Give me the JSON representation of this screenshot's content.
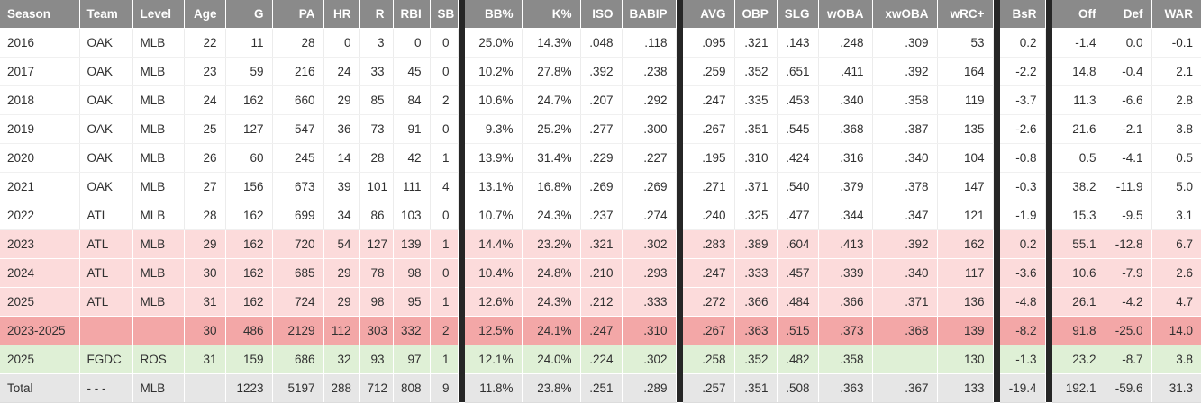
{
  "colors": {
    "header_bg": "#8a8a8a",
    "header_text": "#ffffff",
    "divider": "#262626",
    "row_pink": "#fcdbdb",
    "row_salmon": "#f3a7a7",
    "row_green": "#dff0d6",
    "row_gray": "#e6e6e6",
    "text": "#303030"
  },
  "table": {
    "columns": [
      {
        "label": "Season",
        "align": "left"
      },
      {
        "label": "Team",
        "align": "left"
      },
      {
        "label": "Level",
        "align": "left"
      },
      {
        "label": "Age",
        "align": "right"
      },
      {
        "label": "G",
        "align": "right"
      },
      {
        "label": "PA",
        "align": "right"
      },
      {
        "label": "HR",
        "align": "right"
      },
      {
        "label": "R",
        "align": "right"
      },
      {
        "label": "RBI",
        "align": "right"
      },
      {
        "label": "SB",
        "align": "right"
      },
      {
        "divider": true
      },
      {
        "label": "BB%",
        "align": "right"
      },
      {
        "label": "K%",
        "align": "right"
      },
      {
        "label": "ISO",
        "align": "right"
      },
      {
        "label": "BABIP",
        "align": "right"
      },
      {
        "divider": true
      },
      {
        "label": "AVG",
        "align": "right"
      },
      {
        "label": "OBP",
        "align": "right"
      },
      {
        "label": "SLG",
        "align": "right"
      },
      {
        "label": "wOBA",
        "align": "right"
      },
      {
        "label": "xwOBA",
        "align": "right"
      },
      {
        "label": "wRC+",
        "align": "right"
      },
      {
        "divider": true
      },
      {
        "label": "BsR",
        "align": "right"
      },
      {
        "divider": true
      },
      {
        "label": "Off",
        "align": "right"
      },
      {
        "label": "Def",
        "align": "right"
      },
      {
        "label": "WAR",
        "align": "right"
      }
    ],
    "rows": [
      {
        "row_type": "regular",
        "cells": [
          "2016",
          "OAK",
          "MLB",
          "22",
          "11",
          "28",
          "0",
          "3",
          "0",
          "0",
          "25.0%",
          "14.3%",
          ".048",
          ".118",
          ".095",
          ".321",
          ".143",
          ".248",
          ".309",
          "53",
          "0.2",
          "-1.4",
          "0.0",
          "-0.1"
        ]
      },
      {
        "row_type": "regular",
        "cells": [
          "2017",
          "OAK",
          "MLB",
          "23",
          "59",
          "216",
          "24",
          "33",
          "45",
          "0",
          "10.2%",
          "27.8%",
          ".392",
          ".238",
          ".259",
          ".352",
          ".651",
          ".411",
          ".392",
          "164",
          "-2.2",
          "14.8",
          "-0.4",
          "2.1"
        ]
      },
      {
        "row_type": "regular",
        "cells": [
          "2018",
          "OAK",
          "MLB",
          "24",
          "162",
          "660",
          "29",
          "85",
          "84",
          "2",
          "10.6%",
          "24.7%",
          ".207",
          ".292",
          ".247",
          ".335",
          ".453",
          ".340",
          ".358",
          "119",
          "-3.7",
          "11.3",
          "-6.6",
          "2.8"
        ]
      },
      {
        "row_type": "regular",
        "cells": [
          "2019",
          "OAK",
          "MLB",
          "25",
          "127",
          "547",
          "36",
          "73",
          "91",
          "0",
          "9.3%",
          "25.2%",
          ".277",
          ".300",
          ".267",
          ".351",
          ".545",
          ".368",
          ".387",
          "135",
          "-2.6",
          "21.6",
          "-2.1",
          "3.8"
        ]
      },
      {
        "row_type": "regular",
        "cells": [
          "2020",
          "OAK",
          "MLB",
          "26",
          "60",
          "245",
          "14",
          "28",
          "42",
          "1",
          "13.9%",
          "31.4%",
          ".229",
          ".227",
          ".195",
          ".310",
          ".424",
          ".316",
          ".340",
          "104",
          "-0.8",
          "0.5",
          "-4.1",
          "0.5"
        ]
      },
      {
        "row_type": "regular",
        "cells": [
          "2021",
          "OAK",
          "MLB",
          "27",
          "156",
          "673",
          "39",
          "101",
          "111",
          "4",
          "13.1%",
          "16.8%",
          ".269",
          ".269",
          ".271",
          ".371",
          ".540",
          ".379",
          ".378",
          "147",
          "-0.3",
          "38.2",
          "-11.9",
          "5.0"
        ]
      },
      {
        "row_type": "regular",
        "cells": [
          "2022",
          "ATL",
          "MLB",
          "28",
          "162",
          "699",
          "34",
          "86",
          "103",
          "0",
          "10.7%",
          "24.3%",
          ".237",
          ".274",
          ".240",
          ".325",
          ".477",
          ".344",
          ".347",
          "121",
          "-1.9",
          "15.3",
          "-9.5",
          "3.1"
        ]
      },
      {
        "row_type": "projection",
        "cells": [
          "2023",
          "ATL",
          "MLB",
          "29",
          "162",
          "720",
          "54",
          "127",
          "139",
          "1",
          "14.4%",
          "23.2%",
          ".321",
          ".302",
          ".283",
          ".389",
          ".604",
          ".413",
          ".392",
          "162",
          "0.2",
          "55.1",
          "-12.8",
          "6.7"
        ]
      },
      {
        "row_type": "projection",
        "cells": [
          "2024",
          "ATL",
          "MLB",
          "30",
          "162",
          "685",
          "29",
          "78",
          "98",
          "0",
          "10.4%",
          "24.8%",
          ".210",
          ".293",
          ".247",
          ".333",
          ".457",
          ".339",
          ".340",
          "117",
          "-3.6",
          "10.6",
          "-7.9",
          "2.6"
        ]
      },
      {
        "row_type": "projection",
        "cells": [
          "2025",
          "ATL",
          "MLB",
          "31",
          "162",
          "724",
          "29",
          "98",
          "95",
          "1",
          "12.6%",
          "24.3%",
          ".212",
          ".333",
          ".272",
          ".366",
          ".484",
          ".366",
          ".371",
          "136",
          "-4.8",
          "26.1",
          "-4.2",
          "4.7"
        ]
      },
      {
        "row_type": "projection_total",
        "cells": [
          "2023-2025",
          "",
          "",
          "30",
          "486",
          "2129",
          "112",
          "303",
          "332",
          "2",
          "12.5%",
          "24.1%",
          ".247",
          ".310",
          ".267",
          ".363",
          ".515",
          ".373",
          ".368",
          "139",
          "-8.2",
          "91.8",
          "-25.0",
          "14.0"
        ]
      },
      {
        "row_type": "ros_projection",
        "cells": [
          "2025",
          "FGDC",
          "ROS",
          "31",
          "159",
          "686",
          "32",
          "93",
          "97",
          "1",
          "12.1%",
          "24.0%",
          ".224",
          ".302",
          ".258",
          ".352",
          ".482",
          ".358",
          "",
          "130",
          "-1.3",
          "23.2",
          "-8.7",
          "3.8"
        ]
      },
      {
        "row_type": "total",
        "cells": [
          "Total",
          "- - -",
          "MLB",
          "",
          "1223",
          "5197",
          "288",
          "712",
          "808",
          "9",
          "11.8%",
          "23.8%",
          ".251",
          ".289",
          ".257",
          ".351",
          ".508",
          ".363",
          ".367",
          "133",
          "-19.4",
          "192.1",
          "-59.6",
          "31.3"
        ]
      }
    ]
  }
}
